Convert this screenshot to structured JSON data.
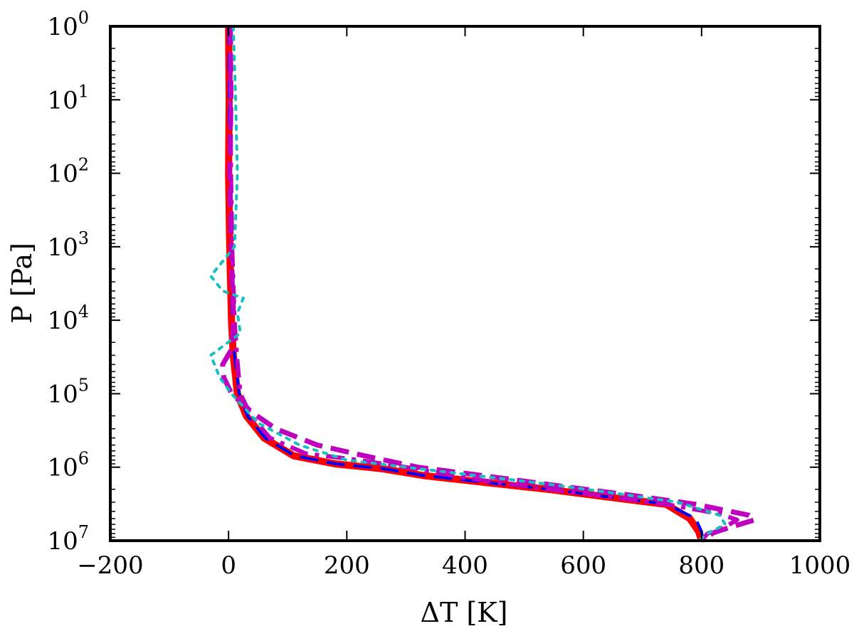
{
  "chart_data": {
    "type": "line",
    "title": "",
    "xlabel": "ΔT [K]",
    "ylabel": "P [Pa]",
    "xlim": [
      -200,
      1000
    ],
    "ylim": [
      1,
      10000000
    ],
    "y_scale": "log",
    "y_inverted": true,
    "grid": false,
    "legend": "none",
    "x_ticks": [
      {
        "value": -200,
        "label": "−200"
      },
      {
        "value": 0,
        "label": "0"
      },
      {
        "value": 200,
        "label": "200"
      },
      {
        "value": 400,
        "label": "400"
      },
      {
        "value": 600,
        "label": "600"
      },
      {
        "value": 800,
        "label": "800"
      },
      {
        "value": 1000,
        "label": "1000"
      }
    ],
    "y_ticks": [
      {
        "value": 1,
        "base": "10",
        "exp": "0"
      },
      {
        "value": 10,
        "base": "10",
        "exp": "1"
      },
      {
        "value": 100,
        "base": "10",
        "exp": "2"
      },
      {
        "value": 1000,
        "base": "10",
        "exp": "3"
      },
      {
        "value": 10000,
        "base": "10",
        "exp": "4"
      },
      {
        "value": 100000,
        "base": "10",
        "exp": "5"
      },
      {
        "value": 1000000,
        "base": "10",
        "exp": "6"
      },
      {
        "value": 10000000,
        "base": "10",
        "exp": "7"
      }
    ],
    "series": [
      {
        "color": "#ff0000",
        "style": "solid",
        "width": 10,
        "points": [
          [
            0,
            1
          ],
          [
            1,
            10
          ],
          [
            0,
            100
          ],
          [
            2,
            1000
          ],
          [
            5,
            10000
          ],
          [
            8,
            30000
          ],
          [
            15,
            100000
          ],
          [
            30,
            200000
          ],
          [
            60,
            400000
          ],
          [
            110,
            700000
          ],
          [
            180,
            900000
          ],
          [
            260,
            1050000
          ],
          [
            330,
            1300000
          ],
          [
            430,
            1600000
          ],
          [
            540,
            2000000
          ],
          [
            650,
            2600000
          ],
          [
            740,
            3200000
          ],
          [
            780,
            5000000
          ],
          [
            795,
            7500000
          ],
          [
            800,
            10000000
          ]
        ]
      },
      {
        "color": "#0000ff",
        "style": "dashed",
        "width": 4,
        "points": [
          [
            0,
            1
          ],
          [
            1,
            10
          ],
          [
            1,
            100
          ],
          [
            3,
            1000
          ],
          [
            6,
            10000
          ],
          [
            10,
            30000
          ],
          [
            18,
            100000
          ],
          [
            32,
            200000
          ],
          [
            62,
            400000
          ],
          [
            112,
            700000
          ],
          [
            182,
            900000
          ],
          [
            262,
            1050000
          ],
          [
            332,
            1300000
          ],
          [
            432,
            1600000
          ],
          [
            542,
            2000000
          ],
          [
            652,
            2600000
          ],
          [
            742,
            3200000
          ],
          [
            790,
            5000000
          ],
          [
            800,
            7500000
          ],
          [
            802,
            10000000
          ]
        ]
      },
      {
        "color": "#bf00bf",
        "style": "dashed",
        "width": 7,
        "points": [
          [
            3,
            1
          ],
          [
            4,
            10
          ],
          [
            2,
            100
          ],
          [
            5,
            1000
          ],
          [
            6,
            3000
          ],
          [
            9,
            10000
          ],
          [
            5,
            25000
          ],
          [
            -10,
            40000
          ],
          [
            -8,
            60000
          ],
          [
            5,
            100000
          ],
          [
            40,
            180000
          ],
          [
            80,
            300000
          ],
          [
            150,
            500000
          ],
          [
            230,
            700000
          ],
          [
            320,
            1000000
          ],
          [
            430,
            1300000
          ],
          [
            560,
            1800000
          ],
          [
            680,
            2400000
          ],
          [
            790,
            3200000
          ],
          [
            880,
            4500000
          ],
          [
            890,
            5200000
          ],
          [
            850,
            6500000
          ],
          [
            820,
            7800000
          ],
          [
            800,
            10000000
          ]
        ]
      },
      {
        "color": "#bf00bf",
        "style": "dashdot",
        "width": 6,
        "points": [
          [
            3,
            1
          ],
          [
            3,
            10
          ],
          [
            4,
            100
          ],
          [
            6,
            1000
          ],
          [
            10,
            10000
          ],
          [
            14,
            30000
          ],
          [
            20,
            100000
          ],
          [
            38,
            200000
          ],
          [
            70,
            400000
          ],
          [
            130,
            650000
          ],
          [
            220,
            800000
          ],
          [
            300,
            1000000
          ],
          [
            400,
            1400000
          ],
          [
            520,
            1900000
          ],
          [
            640,
            2500000
          ],
          [
            750,
            3300000
          ],
          [
            830,
            4300000
          ],
          [
            860,
            5200000
          ],
          [
            840,
            6500000
          ],
          [
            810,
            8000000
          ],
          [
            800,
            10000000
          ]
        ]
      },
      {
        "color": "#17bfbf",
        "style": "dotted",
        "width": 4,
        "points": [
          [
            8,
            1
          ],
          [
            12,
            10
          ],
          [
            15,
            100
          ],
          [
            10,
            1000
          ],
          [
            -30,
            2500
          ],
          [
            -10,
            4000
          ],
          [
            25,
            5000
          ],
          [
            15,
            8000
          ],
          [
            20,
            15000
          ],
          [
            -30,
            30000
          ],
          [
            -15,
            60000
          ],
          [
            5,
            100000
          ],
          [
            50,
            250000
          ],
          [
            120,
            500000
          ],
          [
            200,
            800000
          ],
          [
            300,
            1000000
          ],
          [
            420,
            1300000
          ],
          [
            540,
            1700000
          ],
          [
            660,
            2300000
          ],
          [
            760,
            3000000
          ],
          [
            830,
            4500000
          ],
          [
            840,
            6000000
          ],
          [
            810,
            8000000
          ],
          [
            795,
            10000000
          ]
        ]
      }
    ]
  }
}
